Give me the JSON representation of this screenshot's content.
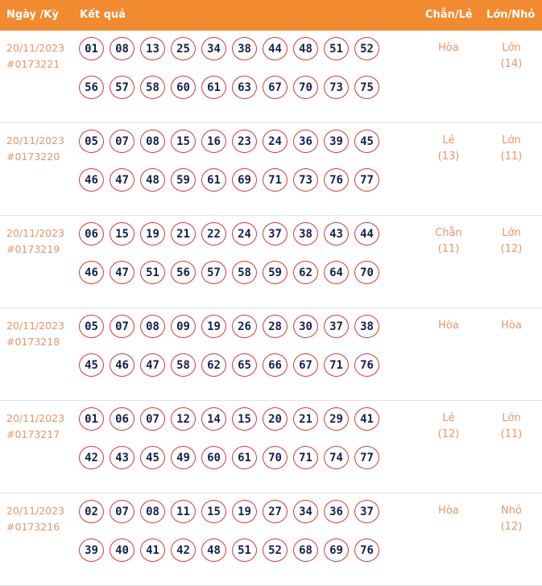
{
  "header": {
    "date": "Ngày /Kỳ",
    "result": "Kết quả",
    "odd_even": "Chẵn/Lẻ",
    "big_small": "Lớn/Nhỏ"
  },
  "rows": [
    {
      "date": "20/11/2023",
      "id": "#0173221",
      "numbers": [
        "01",
        "08",
        "13",
        "25",
        "34",
        "38",
        "44",
        "48",
        "51",
        "52",
        "56",
        "57",
        "58",
        "60",
        "61",
        "63",
        "67",
        "70",
        "73",
        "75"
      ],
      "odd_even": "Hòa",
      "odd_even_count": "",
      "big_small": "Lớn",
      "big_small_count": "(14)"
    },
    {
      "date": "20/11/2023",
      "id": "#0173220",
      "numbers": [
        "05",
        "07",
        "08",
        "15",
        "16",
        "23",
        "24",
        "36",
        "39",
        "45",
        "46",
        "47",
        "48",
        "59",
        "61",
        "69",
        "71",
        "73",
        "76",
        "77"
      ],
      "odd_even": "Lẻ",
      "odd_even_count": "(13)",
      "big_small": "Lớn",
      "big_small_count": "(11)"
    },
    {
      "date": "20/11/2023",
      "id": "#0173219",
      "numbers": [
        "06",
        "15",
        "19",
        "21",
        "22",
        "24",
        "37",
        "38",
        "43",
        "44",
        "46",
        "47",
        "51",
        "56",
        "57",
        "58",
        "59",
        "62",
        "64",
        "70"
      ],
      "odd_even": "Chẵn",
      "odd_even_count": "(11)",
      "big_small": "Lớn",
      "big_small_count": "(12)"
    },
    {
      "date": "20/11/2023",
      "id": "#0173218",
      "numbers": [
        "05",
        "07",
        "08",
        "09",
        "19",
        "26",
        "28",
        "30",
        "37",
        "38",
        "45",
        "46",
        "47",
        "58",
        "62",
        "65",
        "66",
        "67",
        "71",
        "76"
      ],
      "odd_even": "Hòa",
      "odd_even_count": "",
      "big_small": "Hòa",
      "big_small_count": ""
    },
    {
      "date": "20/11/2023",
      "id": "#0173217",
      "numbers": [
        "01",
        "06",
        "07",
        "12",
        "14",
        "15",
        "20",
        "21",
        "29",
        "41",
        "42",
        "43",
        "45",
        "49",
        "60",
        "61",
        "70",
        "71",
        "74",
        "77"
      ],
      "odd_even": "Lẻ",
      "odd_even_count": "(12)",
      "big_small": "Lớn",
      "big_small_count": "(11)"
    },
    {
      "date": "20/11/2023",
      "id": "#0173216",
      "numbers": [
        "02",
        "07",
        "08",
        "11",
        "15",
        "19",
        "27",
        "34",
        "36",
        "37",
        "39",
        "40",
        "41",
        "42",
        "48",
        "51",
        "52",
        "68",
        "69",
        "76"
      ],
      "odd_even": "Hòa",
      "odd_even_count": "",
      "big_small": "Nhỏ",
      "big_small_count": "(12)"
    }
  ],
  "colors": {
    "header": "#F28A30",
    "text": "#E8956A",
    "ball_border": "#D9363E",
    "ball_text": "#14204F"
  }
}
